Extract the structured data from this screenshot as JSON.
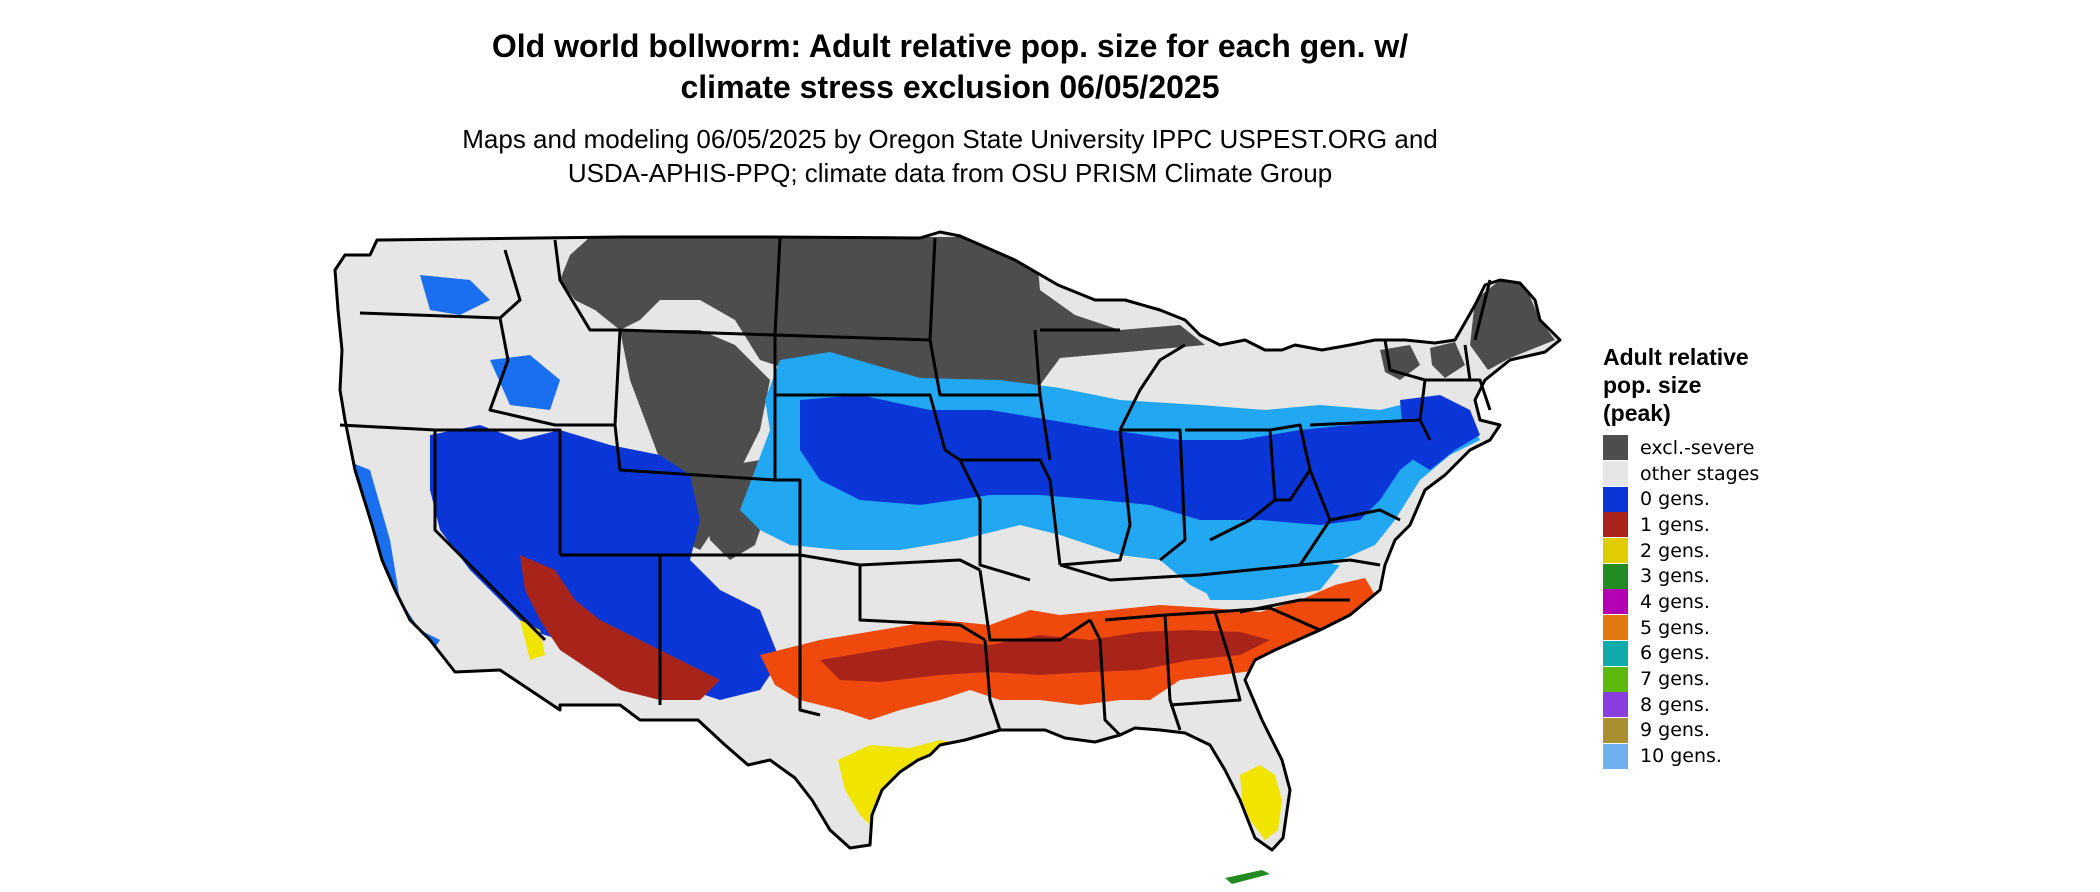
{
  "title_line1": "Old world bollworm: Adult relative pop. size for each gen. w/",
  "title_line2": "climate stress exclusion 06/05/2025",
  "subtitle_line1": "Maps and modeling 06/05/2025 by Oregon State University IPPC USPEST.ORG and",
  "subtitle_line2": "USDA-APHIS-PPQ; climate data from OSU PRISM Climate Group",
  "legend": {
    "title_line1": "Adult relative",
    "title_line2": "pop. size",
    "title_line3": "(peak)",
    "items": [
      {
        "label": "excl.-severe",
        "color": "#4d4d4d"
      },
      {
        "label": "other stages",
        "color": "#e6e6e6"
      },
      {
        "label": "0 gens.",
        "color": "#0a36d8"
      },
      {
        "label": "1 gens.",
        "color": "#a8241a"
      },
      {
        "label": "2 gens.",
        "color": "#e0cc00"
      },
      {
        "label": "3 gens.",
        "color": "#228b22"
      },
      {
        "label": "4 gens.",
        "color": "#b400b4"
      },
      {
        "label": "5 gens.",
        "color": "#e07a10"
      },
      {
        "label": "6 gens.",
        "color": "#10aaaa"
      },
      {
        "label": "7 gens.",
        "color": "#5cb80a"
      },
      {
        "label": "8 gens.",
        "color": "#8a3ee0"
      },
      {
        "label": "9 gens.",
        "color": "#a89030"
      },
      {
        "label": "10 gens.",
        "color": "#70b0f0"
      }
    ]
  },
  "map_colors": {
    "land": "#e6e6e6",
    "excluded": "#4d4d4d",
    "blue_dark": "#0a36d8",
    "blue_mid": "#1a6ef0",
    "blue_light": "#22a8f2",
    "red_dark": "#a8241a",
    "red_orange": "#ef4a0c",
    "yellow": "#f0e400",
    "green": "#228b22"
  }
}
